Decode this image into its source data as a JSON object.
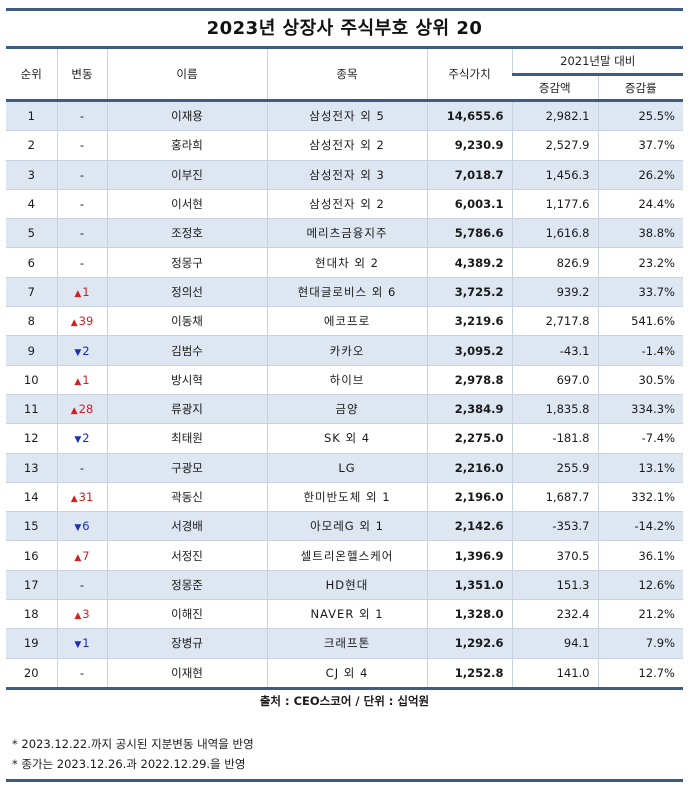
{
  "title": "2023년 상장사 주식부호 상위 20",
  "headers": {
    "rank": "순위",
    "change": "변동",
    "name": "이름",
    "stock": "종목",
    "value": "주식가치",
    "group": "2021년말 대비",
    "amount": "증감액",
    "rate": "증감률"
  },
  "rows": [
    {
      "rank": "1",
      "change_dir": "none",
      "change": "-",
      "name": "이재용",
      "stock": "삼성전자 외 5",
      "value": "14,655.6",
      "amount": "2,982.1",
      "rate": "25.5%"
    },
    {
      "rank": "2",
      "change_dir": "none",
      "change": "-",
      "name": "홍라희",
      "stock": "삼성전자 외 2",
      "value": "9,230.9",
      "amount": "2,527.9",
      "rate": "37.7%"
    },
    {
      "rank": "3",
      "change_dir": "none",
      "change": "-",
      "name": "이부진",
      "stock": "삼성전자 외 3",
      "value": "7,018.7",
      "amount": "1,456.3",
      "rate": "26.2%"
    },
    {
      "rank": "4",
      "change_dir": "none",
      "change": "-",
      "name": "이서현",
      "stock": "삼성전자 외 2",
      "value": "6,003.1",
      "amount": "1,177.6",
      "rate": "24.4%"
    },
    {
      "rank": "5",
      "change_dir": "none",
      "change": "-",
      "name": "조정호",
      "stock": "메리츠금융지주",
      "value": "5,786.6",
      "amount": "1,616.8",
      "rate": "38.8%"
    },
    {
      "rank": "6",
      "change_dir": "none",
      "change": "-",
      "name": "정몽구",
      "stock": "현대차 외 2",
      "value": "4,389.2",
      "amount": "826.9",
      "rate": "23.2%"
    },
    {
      "rank": "7",
      "change_dir": "up",
      "change": "1",
      "name": "정의선",
      "stock": "현대글로비스 외 6",
      "value": "3,725.2",
      "amount": "939.2",
      "rate": "33.7%"
    },
    {
      "rank": "8",
      "change_dir": "up",
      "change": "39",
      "name": "이동채",
      "stock": "에코프로",
      "value": "3,219.6",
      "amount": "2,717.8",
      "rate": "541.6%"
    },
    {
      "rank": "9",
      "change_dir": "down",
      "change": "2",
      "name": "김범수",
      "stock": "카카오",
      "value": "3,095.2",
      "amount": "-43.1",
      "rate": "-1.4%"
    },
    {
      "rank": "10",
      "change_dir": "up",
      "change": "1",
      "name": "방시혁",
      "stock": "하이브",
      "value": "2,978.8",
      "amount": "697.0",
      "rate": "30.5%"
    },
    {
      "rank": "11",
      "change_dir": "up",
      "change": "28",
      "name": "류광지",
      "stock": "금양",
      "value": "2,384.9",
      "amount": "1,835.8",
      "rate": "334.3%"
    },
    {
      "rank": "12",
      "change_dir": "down",
      "change": "2",
      "name": "최태원",
      "stock": "SK 외 4",
      "value": "2,275.0",
      "amount": "-181.8",
      "rate": "-7.4%"
    },
    {
      "rank": "13",
      "change_dir": "none",
      "change": "-",
      "name": "구광모",
      "stock": "LG",
      "value": "2,216.0",
      "amount": "255.9",
      "rate": "13.1%"
    },
    {
      "rank": "14",
      "change_dir": "up",
      "change": "31",
      "name": "곽동신",
      "stock": "한미반도체 외 1",
      "value": "2,196.0",
      "amount": "1,687.7",
      "rate": "332.1%"
    },
    {
      "rank": "15",
      "change_dir": "down",
      "change": "6",
      "name": "서경배",
      "stock": "아모레G 외 1",
      "value": "2,142.6",
      "amount": "-353.7",
      "rate": "-14.2%"
    },
    {
      "rank": "16",
      "change_dir": "up",
      "change": "7",
      "name": "서정진",
      "stock": "셀트리온헬스케어",
      "value": "1,396.9",
      "amount": "370.5",
      "rate": "36.1%"
    },
    {
      "rank": "17",
      "change_dir": "none",
      "change": "-",
      "name": "정몽준",
      "stock": "HD현대",
      "value": "1,351.0",
      "amount": "151.3",
      "rate": "12.6%"
    },
    {
      "rank": "18",
      "change_dir": "up",
      "change": "3",
      "name": "이해진",
      "stock": "NAVER 외 1",
      "value": "1,328.0",
      "amount": "232.4",
      "rate": "21.2%"
    },
    {
      "rank": "19",
      "change_dir": "down",
      "change": "1",
      "name": "장병규",
      "stock": "크래프톤",
      "value": "1,292.6",
      "amount": "94.1",
      "rate": "7.9%"
    },
    {
      "rank": "20",
      "change_dir": "none",
      "change": "-",
      "name": "이재현",
      "stock": "CJ 외 4",
      "value": "1,252.8",
      "amount": "141.0",
      "rate": "12.7%"
    }
  ],
  "icons": {
    "up": "▲",
    "down": "▼"
  },
  "colors": {
    "rule": "#3e5b80",
    "band": "#dde6f1",
    "up": "#d21f1f",
    "down": "#1a2fb8"
  },
  "source": "출처 : CEO스코어 / 단위 : 십억원",
  "notes": [
    "* 2023.12.22.까지 공시된 지분변동 내역을 반영",
    "* 종가는 2023.12.26.과 2022.12.29.을 반영"
  ]
}
